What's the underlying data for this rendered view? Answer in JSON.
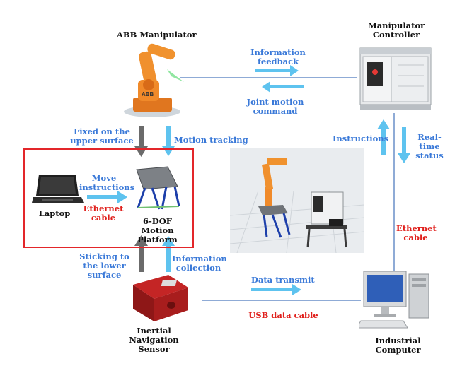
{
  "nodes": {
    "abb": {
      "label": "ABB Manipulator"
    },
    "controller": {
      "label": "Manipulator Controller"
    },
    "laptop": {
      "label": "Laptop"
    },
    "platform": {
      "label": "6-DOF Motion Platform"
    },
    "ins": {
      "label": "Inertial Navigation Sensor"
    },
    "computer": {
      "label": "Industrial Computer"
    }
  },
  "edges": {
    "info_feedback": "Information feedback",
    "joint_motion": "Joint motion command",
    "fixed_upper": "Fixed on the upper surface",
    "motion_tracking": "Motion tracking",
    "move_instructions": "Move instructions",
    "ethernet_left": "Ethernet cable",
    "instructions": "Instructions",
    "realtime_status": "Real-time status",
    "ethernet_right": "Ethernet cable",
    "sticking_lower": "Sticking to the lower surface",
    "info_collection": "Information collection",
    "data_transmit": "Data transmit",
    "usb_cable": "USB data cable"
  },
  "colors": {
    "blue_arrow": "#5ec3ef",
    "dark_arrow": "#6b6b6b",
    "line": "#6a8fc8",
    "label_blue": "#3a79d8",
    "label_red": "#e0201c",
    "box_red": "#e3262a"
  }
}
